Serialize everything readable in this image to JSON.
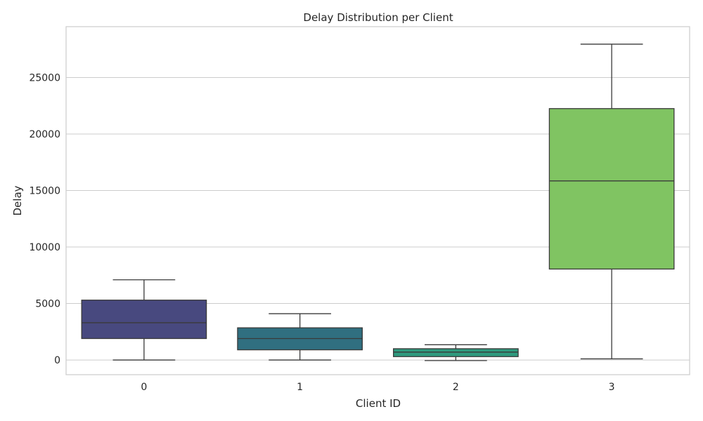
{
  "chart_data": {
    "type": "box",
    "title": "Delay Distribution per Client",
    "xlabel": "Client ID",
    "ylabel": "Delay",
    "ylim": [
      -1300,
      29500
    ],
    "yticks": [
      0,
      5000,
      10000,
      15000,
      20000,
      25000
    ],
    "grid": true,
    "categories": [
      "0",
      "1",
      "2",
      "3"
    ],
    "boxes": [
      {
        "category": "0",
        "whisker_low": 0,
        "q1": 1900,
        "median": 3300,
        "q3": 5300,
        "whisker_high": 7100,
        "color": "#48497f"
      },
      {
        "category": "1",
        "whisker_low": 0,
        "q1": 900,
        "median": 1900,
        "q3": 2850,
        "whisker_high": 4100,
        "color": "#306f80"
      },
      {
        "category": "2",
        "whisker_low": -50,
        "q1": 300,
        "median": 700,
        "q3": 1000,
        "whisker_high": 1350,
        "color": "#2e9a7e"
      },
      {
        "category": "3",
        "whisker_low": 100,
        "q1": 8050,
        "median": 15850,
        "q3": 22250,
        "whisker_high": 27950,
        "color": "#80c462"
      }
    ]
  }
}
